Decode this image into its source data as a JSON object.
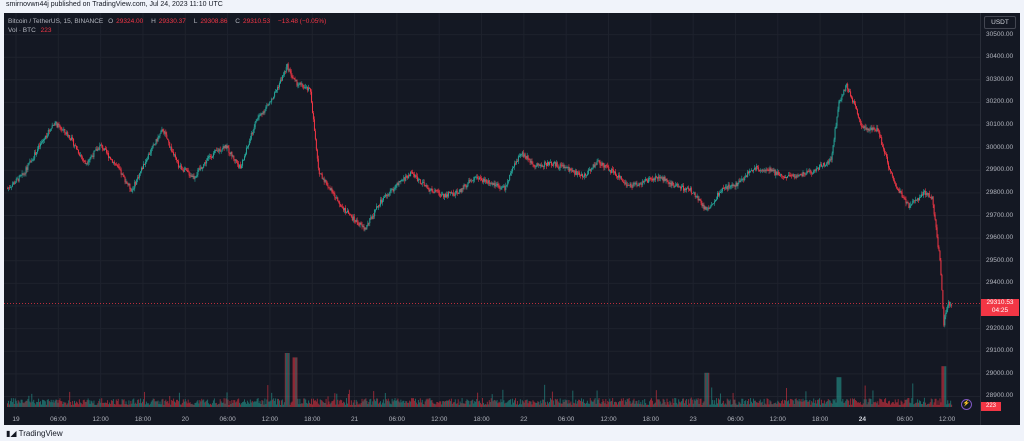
{
  "header": {
    "published": "smirnovwn44j published on TradingView.com, Jul 24, 2023 11:10 UTC"
  },
  "legend": {
    "symbol": "Bitcoin / TetherUS, 15, BINANCE",
    "open_label": "O",
    "open": "29324.00",
    "high_label": "H",
    "high": "29330.37",
    "low_label": "L",
    "low": "29308.86",
    "close_label": "C",
    "close": "29310.53",
    "change": "−13.48 (−0.05%)",
    "vol_label": "Vol · BTC",
    "vol": "223"
  },
  "price_scale": {
    "currency": "USDT",
    "last_price": "29310.53",
    "countdown": "04:25",
    "volume_badge": "223"
  },
  "colors": {
    "up": "#26a69a",
    "down": "#f23645",
    "background": "#141823",
    "grid": "#1e222d"
  },
  "chart_data": {
    "type": "candlestick",
    "y_ticks": [
      "30500.00",
      "30400.00",
      "30300.00",
      "30200.00",
      "30100.00",
      "30000.00",
      "29900.00",
      "29800.00",
      "29700.00",
      "29600.00",
      "29500.00",
      "29400.00",
      "29300.00",
      "29200.00",
      "29100.00",
      "29000.00",
      "28900.00"
    ],
    "ylim": [
      28880,
      30560
    ],
    "x_ticks": [
      "19",
      "06:00",
      "12:00",
      "18:00",
      "20",
      "06:00",
      "12:00",
      "18:00",
      "21",
      "06:00",
      "12:00",
      "18:00",
      "22",
      "06:00",
      "12:00",
      "18:00",
      "23",
      "06:00",
      "12:00",
      "18:00",
      "24",
      "06:00",
      "12:00"
    ],
    "x_tick_bold": "24",
    "close_path": [
      {
        "t": 0,
        "p": 29820
      },
      {
        "t": 4,
        "p": 29880
      },
      {
        "t": 8,
        "p": 30000
      },
      {
        "t": 12,
        "p": 30110
      },
      {
        "t": 16,
        "p": 30050
      },
      {
        "t": 20,
        "p": 29930
      },
      {
        "t": 24,
        "p": 30010
      },
      {
        "t": 28,
        "p": 29920
      },
      {
        "t": 32,
        "p": 29810
      },
      {
        "t": 36,
        "p": 29960
      },
      {
        "t": 40,
        "p": 30080
      },
      {
        "t": 44,
        "p": 29920
      },
      {
        "t": 48,
        "p": 29870
      },
      {
        "t": 52,
        "p": 29960
      },
      {
        "t": 56,
        "p": 30010
      },
      {
        "t": 60,
        "p": 29910
      },
      {
        "t": 64,
        "p": 30120
      },
      {
        "t": 68,
        "p": 30210
      },
      {
        "t": 72,
        "p": 30360
      },
      {
        "t": 74,
        "p": 30290
      },
      {
        "t": 78,
        "p": 30250
      },
      {
        "t": 80,
        "p": 29900
      },
      {
        "t": 84,
        "p": 29790
      },
      {
        "t": 88,
        "p": 29700
      },
      {
        "t": 92,
        "p": 29640
      },
      {
        "t": 96,
        "p": 29760
      },
      {
        "t": 100,
        "p": 29830
      },
      {
        "t": 104,
        "p": 29890
      },
      {
        "t": 108,
        "p": 29820
      },
      {
        "t": 112,
        "p": 29790
      },
      {
        "t": 116,
        "p": 29800
      },
      {
        "t": 120,
        "p": 29870
      },
      {
        "t": 124,
        "p": 29850
      },
      {
        "t": 128,
        "p": 29820
      },
      {
        "t": 132,
        "p": 29980
      },
      {
        "t": 136,
        "p": 29920
      },
      {
        "t": 140,
        "p": 29930
      },
      {
        "t": 144,
        "p": 29910
      },
      {
        "t": 148,
        "p": 29870
      },
      {
        "t": 152,
        "p": 29940
      },
      {
        "t": 156,
        "p": 29890
      },
      {
        "t": 160,
        "p": 29830
      },
      {
        "t": 164,
        "p": 29850
      },
      {
        "t": 168,
        "p": 29870
      },
      {
        "t": 172,
        "p": 29830
      },
      {
        "t": 176,
        "p": 29810
      },
      {
        "t": 180,
        "p": 29720
      },
      {
        "t": 184,
        "p": 29820
      },
      {
        "t": 188,
        "p": 29840
      },
      {
        "t": 192,
        "p": 29910
      },
      {
        "t": 196,
        "p": 29900
      },
      {
        "t": 200,
        "p": 29870
      },
      {
        "t": 204,
        "p": 29880
      },
      {
        "t": 208,
        "p": 29900
      },
      {
        "t": 212,
        "p": 29950
      },
      {
        "t": 214,
        "p": 30200
      },
      {
        "t": 216,
        "p": 30280
      },
      {
        "t": 220,
        "p": 30090
      },
      {
        "t": 224,
        "p": 30080
      },
      {
        "t": 228,
        "p": 29850
      },
      {
        "t": 232,
        "p": 29740
      },
      {
        "t": 236,
        "p": 29800
      },
      {
        "t": 238,
        "p": 29780
      },
      {
        "t": 240,
        "p": 29500
      },
      {
        "t": 241,
        "p": 29220
      },
      {
        "t": 242,
        "p": 29310
      },
      {
        "t": 243,
        "p": 29310
      }
    ],
    "volume_spikes": [
      {
        "t": 72,
        "v": 1
      },
      {
        "t": 74,
        "v": 0.9
      },
      {
        "t": 180,
        "v": 0.55
      },
      {
        "t": 214,
        "v": 0.45
      },
      {
        "t": 241,
        "v": 0.7
      }
    ]
  }
}
